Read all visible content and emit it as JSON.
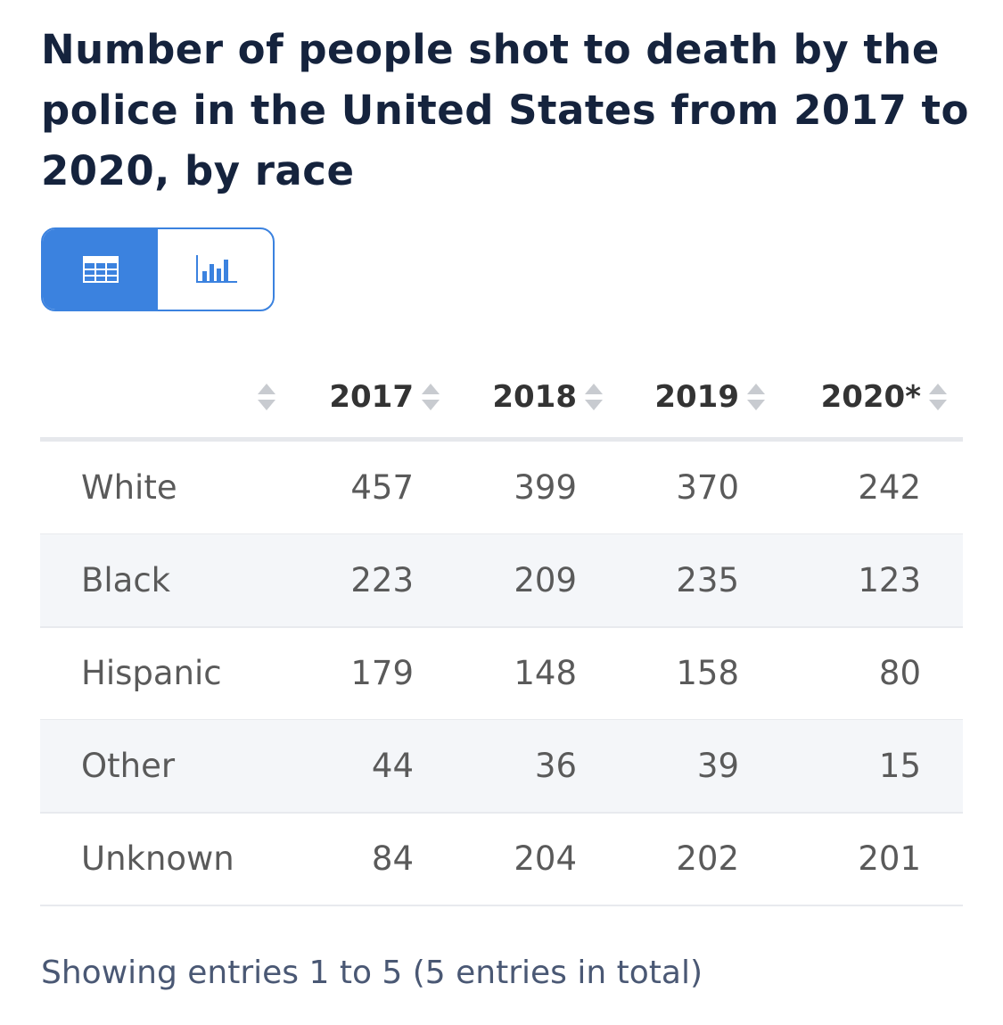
{
  "header": {
    "title": "Number of people shot to death by the police in the United States from 2017 to 2020, by race"
  },
  "table": {
    "columns": [
      "2017",
      "2018",
      "2019",
      "2020*"
    ],
    "rows": [
      {
        "label": "White",
        "values": [
          457,
          399,
          370,
          242
        ]
      },
      {
        "label": "Black",
        "values": [
          223,
          209,
          235,
          123
        ]
      },
      {
        "label": "Hispanic",
        "values": [
          179,
          148,
          158,
          80
        ]
      },
      {
        "label": "Other",
        "values": [
          44,
          36,
          39,
          15
        ]
      },
      {
        "label": "Unknown",
        "values": [
          84,
          204,
          202,
          201
        ]
      }
    ]
  },
  "footer": {
    "text": "Showing entries 1 to 5 (5 entries in total)"
  }
}
